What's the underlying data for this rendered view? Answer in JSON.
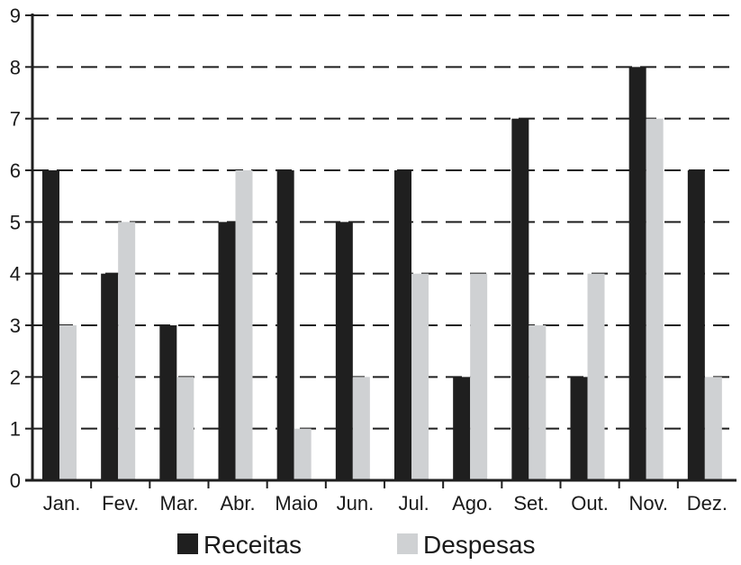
{
  "chart_data": {
    "type": "bar",
    "categories": [
      "Jan.",
      "Fev.",
      "Mar.",
      "Abr.",
      "Maio",
      "Jun.",
      "Jul.",
      "Ago.",
      "Set.",
      "Out.",
      "Nov.",
      "Dez."
    ],
    "series": [
      {
        "name": "Receitas",
        "color": "#1f1f1f",
        "values": [
          6,
          4,
          3,
          5,
          6,
          5,
          6,
          2,
          7,
          2,
          8,
          6
        ]
      },
      {
        "name": "Despesas",
        "color": "#cfd1d3",
        "values": [
          3,
          5,
          2,
          6,
          1,
          2,
          4,
          4,
          3,
          4,
          7,
          2
        ]
      }
    ],
    "ylim": [
      0,
      9
    ],
    "yticks": [
      0,
      1,
      2,
      3,
      4,
      5,
      6,
      7,
      8,
      9
    ],
    "grid": "horizontal-dashed",
    "legend_position": "bottom"
  }
}
